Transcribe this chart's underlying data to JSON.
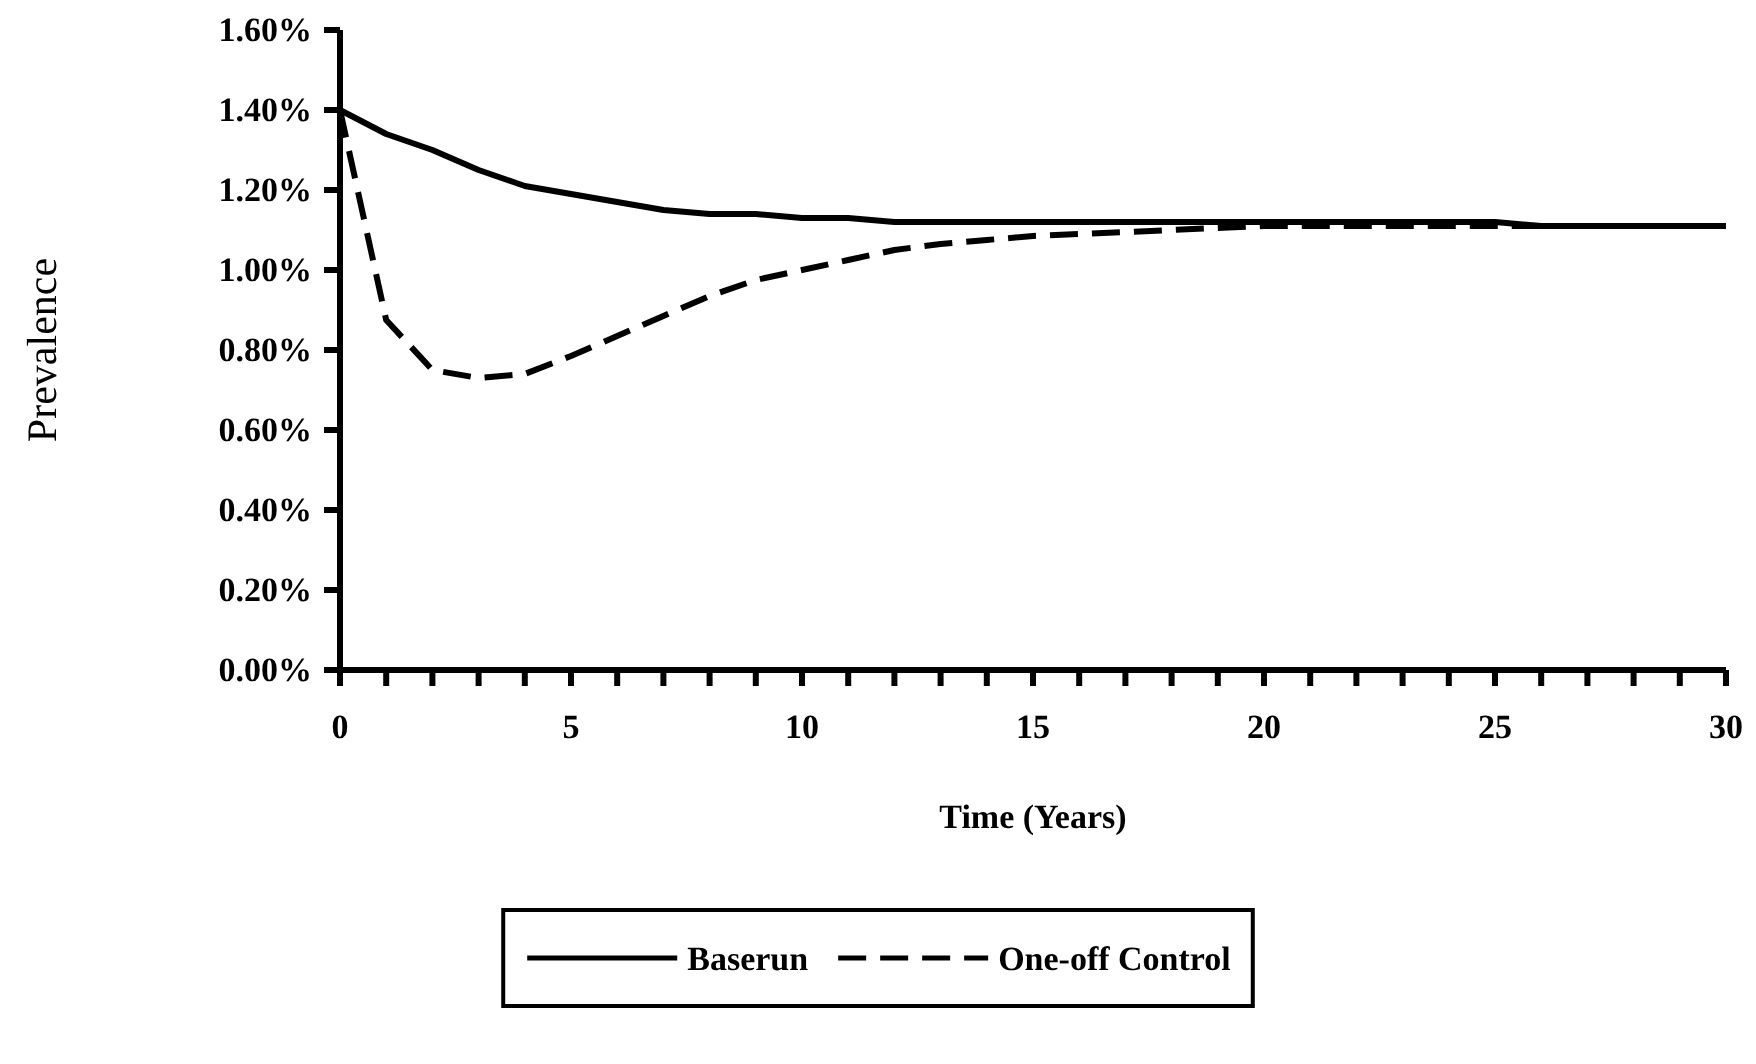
{
  "chart_data": {
    "type": "line",
    "xlabel": "Time (Years)",
    "ylabel": "Prevalence",
    "legend": "bottom",
    "marker": "none",
    "xlim": [
      0,
      30
    ],
    "ylim": [
      0,
      1.6
    ],
    "xticks": [
      0,
      {
        "value": 1,
        "label": null
      },
      {
        "value": 2,
        "label": null
      },
      {
        "value": 3,
        "label": null
      },
      {
        "value": 4,
        "label": null
      },
      5,
      {
        "value": 6,
        "label": null
      },
      {
        "value": 7,
        "label": null
      },
      {
        "value": 8,
        "label": null
      },
      {
        "value": 9,
        "label": null
      },
      10,
      {
        "value": 11,
        "label": null
      },
      {
        "value": 12,
        "label": null
      },
      {
        "value": 13,
        "label": null
      },
      {
        "value": 14,
        "label": null
      },
      15,
      {
        "value": 16,
        "label": null
      },
      {
        "value": 17,
        "label": null
      },
      {
        "value": 18,
        "label": null
      },
      {
        "value": 19,
        "label": null
      },
      20,
      {
        "value": 21,
        "label": null
      },
      {
        "value": 22,
        "label": null
      },
      {
        "value": 23,
        "label": null
      },
      {
        "value": 24,
        "label": null
      },
      25,
      {
        "value": 26,
        "label": null
      },
      {
        "value": 27,
        "label": null
      },
      {
        "value": 28,
        "label": null
      },
      {
        "value": 29,
        "label": null
      },
      30
    ],
    "yticks": [
      {
        "value": 0,
        "label": "0.00%"
      },
      {
        "value": 0.2,
        "label": "0.20%"
      },
      {
        "value": 0.4,
        "label": "0.40%"
      },
      {
        "value": 0.6,
        "label": "0.60%"
      },
      {
        "value": 0.8,
        "label": "0.80%"
      },
      {
        "value": 1.0,
        "label": "1.00%"
      },
      {
        "value": 1.2,
        "label": "1.20%"
      },
      {
        "value": 1.4,
        "label": "1.40%"
      },
      {
        "value": 1.6,
        "label": "1.60%"
      }
    ],
    "x": [
      0,
      1,
      2,
      3,
      4,
      5,
      6,
      7,
      8,
      9,
      10,
      11,
      12,
      13,
      14,
      15,
      16,
      17,
      18,
      19,
      20,
      21,
      22,
      23,
      24,
      25,
      26,
      27,
      28,
      29,
      30
    ],
    "series": [
      {
        "name": "Baserun",
        "color": "#000000",
        "line_style": "solid",
        "values": [
          1.4,
          1.34,
          1.3,
          1.25,
          1.21,
          1.19,
          1.17,
          1.15,
          1.14,
          1.14,
          1.13,
          1.13,
          1.12,
          1.12,
          1.12,
          1.12,
          1.12,
          1.12,
          1.12,
          1.12,
          1.12,
          1.12,
          1.12,
          1.12,
          1.12,
          1.12,
          1.11,
          1.11,
          1.11,
          1.11,
          1.11
        ]
      },
      {
        "name": "One-off Control",
        "color": "#000000",
        "line_style": "dashed",
        "values": [
          1.4,
          0.875,
          0.75,
          0.73,
          0.74,
          0.785,
          0.835,
          0.885,
          0.935,
          0.975,
          1.0,
          1.025,
          1.05,
          1.065,
          1.075,
          1.085,
          1.09,
          1.095,
          1.1,
          1.105,
          1.11,
          1.11,
          1.11,
          1.11,
          1.11,
          1.11,
          1.11,
          1.11,
          1.11,
          1.11,
          1.11
        ]
      }
    ]
  }
}
